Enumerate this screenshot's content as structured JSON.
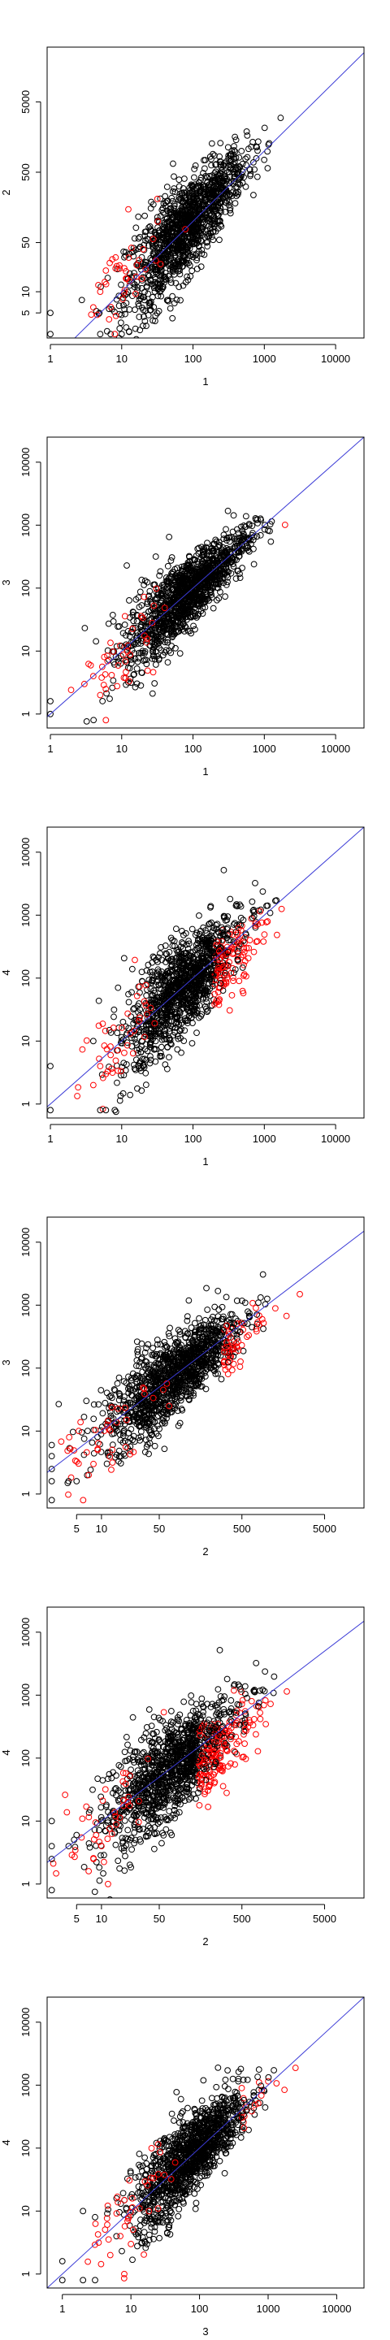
{
  "colors": {
    "black_points": "#000000",
    "red_points": "#ff0000",
    "reference_line": "#3a3ad6",
    "axis": "#000000"
  },
  "chart_data": [
    {
      "type": "scatter",
      "xlabel": "1",
      "ylabel": "2",
      "log_x": true,
      "log_y": true,
      "xlim": [
        0.9,
        25000
      ],
      "ylim": [
        2.2,
        30000
      ],
      "xticks": [
        {
          "v": 1,
          "label": "1"
        },
        {
          "v": 10,
          "label": "10"
        },
        {
          "v": 100,
          "label": "100"
        },
        {
          "v": 1000,
          "label": "1000"
        },
        {
          "v": 10000,
          "label": "10000"
        }
      ],
      "yticks": [
        {
          "v": 5,
          "label": "5"
        },
        {
          "v": 10,
          "label": "10"
        },
        {
          "v": 50,
          "label": "50"
        },
        {
          "v": 500,
          "label": "500"
        },
        {
          "v": 5000,
          "label": "5000"
        }
      ],
      "trend": {
        "center": 80,
        "slope": 1.08,
        "spread": 0.32,
        "red_offset": 0.12,
        "red_split": 2000
      },
      "outliers_black": [
        [
          1,
          2.5
        ],
        [
          1,
          5
        ],
        [
          5,
          2.5
        ],
        [
          7,
          2.5
        ],
        [
          10,
          2.5
        ]
      ],
      "outliers_red": [
        [
          4,
          6
        ],
        [
          5,
          10
        ],
        [
          8,
          2.5
        ],
        [
          6,
          20
        ]
      ],
      "reference_line": {
        "slope": 1,
        "intercept": 0
      }
    },
    {
      "type": "scatter",
      "xlabel": "1",
      "ylabel": "3",
      "log_x": true,
      "log_y": true,
      "xlim": [
        0.9,
        25000
      ],
      "ylim": [
        0.6,
        25000
      ],
      "xticks": [
        {
          "v": 1,
          "label": "1"
        },
        {
          "v": 10,
          "label": "10"
        },
        {
          "v": 100,
          "label": "100"
        },
        {
          "v": 1000,
          "label": "1000"
        },
        {
          "v": 10000,
          "label": "10000"
        }
      ],
      "yticks": [
        {
          "v": 1,
          "label": "1"
        },
        {
          "v": 10,
          "label": "10"
        },
        {
          "v": 100,
          "label": "100"
        },
        {
          "v": 1000,
          "label": "1000"
        },
        {
          "v": 10000,
          "label": "10000"
        }
      ],
      "trend": {
        "center": 80,
        "slope": 1.0,
        "spread": 0.28,
        "red_offset": -0.1,
        "red_split": 1500
      },
      "outliers_black": [
        [
          1,
          1
        ],
        [
          1,
          1.6
        ],
        [
          10,
          12
        ]
      ],
      "outliers_red": [
        [
          4,
          4
        ],
        [
          5,
          2
        ],
        [
          6,
          0.8
        ],
        [
          3,
          3
        ]
      ],
      "reference_line": {
        "slope": 1,
        "intercept": 0
      }
    },
    {
      "type": "scatter",
      "xlabel": "1",
      "ylabel": "4",
      "log_x": true,
      "log_y": true,
      "xlim": [
        0.9,
        25000
      ],
      "ylim": [
        0.6,
        25000
      ],
      "xticks": [
        {
          "v": 1,
          "label": "1"
        },
        {
          "v": 10,
          "label": "10"
        },
        {
          "v": 100,
          "label": "100"
        },
        {
          "v": 1000,
          "label": "1000"
        },
        {
          "v": 10000,
          "label": "10000"
        }
      ],
      "yticks": [
        {
          "v": 1,
          "label": "1"
        },
        {
          "v": 10,
          "label": "10"
        },
        {
          "v": 100,
          "label": "100"
        },
        {
          "v": 1000,
          "label": "1000"
        },
        {
          "v": 10000,
          "label": "10000"
        }
      ],
      "trend": {
        "center": 80,
        "slope": 1.05,
        "spread": 0.36,
        "red_offset": -0.3,
        "red_split": 200
      },
      "outliers_black": [
        [
          1,
          0.8
        ],
        [
          1,
          4
        ],
        [
          5,
          0.8
        ],
        [
          6,
          0.8
        ],
        [
          8,
          0.8
        ],
        [
          4,
          10
        ]
      ],
      "outliers_red": [
        [
          4,
          2
        ],
        [
          5,
          4
        ],
        [
          6,
          3
        ],
        [
          7,
          6
        ]
      ],
      "reference_line": {
        "slope": 1,
        "intercept": 0
      }
    },
    {
      "type": "scatter",
      "xlabel": "2",
      "ylabel": "3",
      "log_x": true,
      "log_y": true,
      "xlim": [
        2.2,
        15000
      ],
      "ylim": [
        0.6,
        25000
      ],
      "xticks": [
        {
          "v": 5,
          "label": "5"
        },
        {
          "v": 10,
          "label": "10"
        },
        {
          "v": 50,
          "label": "50"
        },
        {
          "v": 500,
          "label": "500"
        },
        {
          "v": 5000,
          "label": "5000"
        }
      ],
      "yticks": [
        {
          "v": 1,
          "label": "1"
        },
        {
          "v": 10,
          "label": "10"
        },
        {
          "v": 100,
          "label": "100"
        },
        {
          "v": 1000,
          "label": "1000"
        },
        {
          "v": 10000,
          "label": "10000"
        }
      ],
      "trend": {
        "center": 80,
        "slope": 1.0,
        "spread": 0.3,
        "red_offset": -0.22,
        "red_split": 300
      },
      "outliers_black": [
        [
          2.5,
          0.8
        ],
        [
          2.5,
          1.6
        ],
        [
          2.5,
          2.5
        ],
        [
          2.5,
          4
        ],
        [
          2.5,
          6
        ],
        [
          4,
          1.6
        ],
        [
          5,
          1.6
        ]
      ],
      "outliers_red": [
        [
          6,
          0.8
        ],
        [
          7,
          2
        ],
        [
          8,
          3
        ],
        [
          9,
          5
        ]
      ],
      "reference_line": {
        "slope": 1,
        "intercept": 0
      }
    },
    {
      "type": "scatter",
      "xlabel": "2",
      "ylabel": "4",
      "log_x": true,
      "log_y": true,
      "xlim": [
        2.2,
        15000
      ],
      "ylim": [
        0.6,
        25000
      ],
      "xticks": [
        {
          "v": 5,
          "label": "5"
        },
        {
          "v": 10,
          "label": "10"
        },
        {
          "v": 50,
          "label": "50"
        },
        {
          "v": 500,
          "label": "500"
        },
        {
          "v": 5000,
          "label": "5000"
        }
      ],
      "yticks": [
        {
          "v": 1,
          "label": "1"
        },
        {
          "v": 10,
          "label": "10"
        },
        {
          "v": 100,
          "label": "100"
        },
        {
          "v": 1000,
          "label": "1000"
        },
        {
          "v": 10000,
          "label": "10000"
        }
      ],
      "trend": {
        "center": 80,
        "slope": 1.05,
        "spread": 0.36,
        "red_offset": -0.34,
        "red_split": 150
      },
      "outliers_black": [
        [
          2.5,
          0.8
        ],
        [
          2.5,
          2.5
        ],
        [
          2.5,
          4
        ],
        [
          2.5,
          10
        ],
        [
          4,
          4
        ],
        [
          5,
          6
        ]
      ],
      "outliers_red": [
        [
          7,
          1.6
        ],
        [
          8,
          2.5
        ],
        [
          10,
          4
        ],
        [
          12,
          1
        ]
      ],
      "reference_line": {
        "slope": 1,
        "intercept": 0
      }
    },
    {
      "type": "scatter",
      "xlabel": "3",
      "ylabel": "4",
      "log_x": true,
      "log_y": true,
      "xlim": [
        0.6,
        25000
      ],
      "ylim": [
        0.6,
        25000
      ],
      "xticks": [
        {
          "v": 1,
          "label": "1"
        },
        {
          "v": 10,
          "label": "10"
        },
        {
          "v": 100,
          "label": "100"
        },
        {
          "v": 1000,
          "label": "1000"
        },
        {
          "v": 10000,
          "label": "10000"
        }
      ],
      "yticks": [
        {
          "v": 1,
          "label": "1"
        },
        {
          "v": 10,
          "label": "10"
        },
        {
          "v": 100,
          "label": "100"
        },
        {
          "v": 1000,
          "label": "1000"
        },
        {
          "v": 10000,
          "label": "10000"
        }
      ],
      "trend": {
        "center": 80,
        "slope": 1.02,
        "spread": 0.3,
        "red_offset": -0.15,
        "red_split": 400
      },
      "outliers_black": [
        [
          1,
          0.8
        ],
        [
          1,
          1.6
        ],
        [
          2,
          0.8
        ],
        [
          3,
          0.8
        ],
        [
          2,
          10
        ],
        [
          3,
          8
        ]
      ],
      "outliers_red": [
        [
          5,
          2
        ],
        [
          7,
          4
        ],
        [
          8,
          1
        ],
        [
          10,
          3
        ]
      ],
      "reference_line": {
        "slope": 1,
        "intercept": 0
      }
    }
  ]
}
